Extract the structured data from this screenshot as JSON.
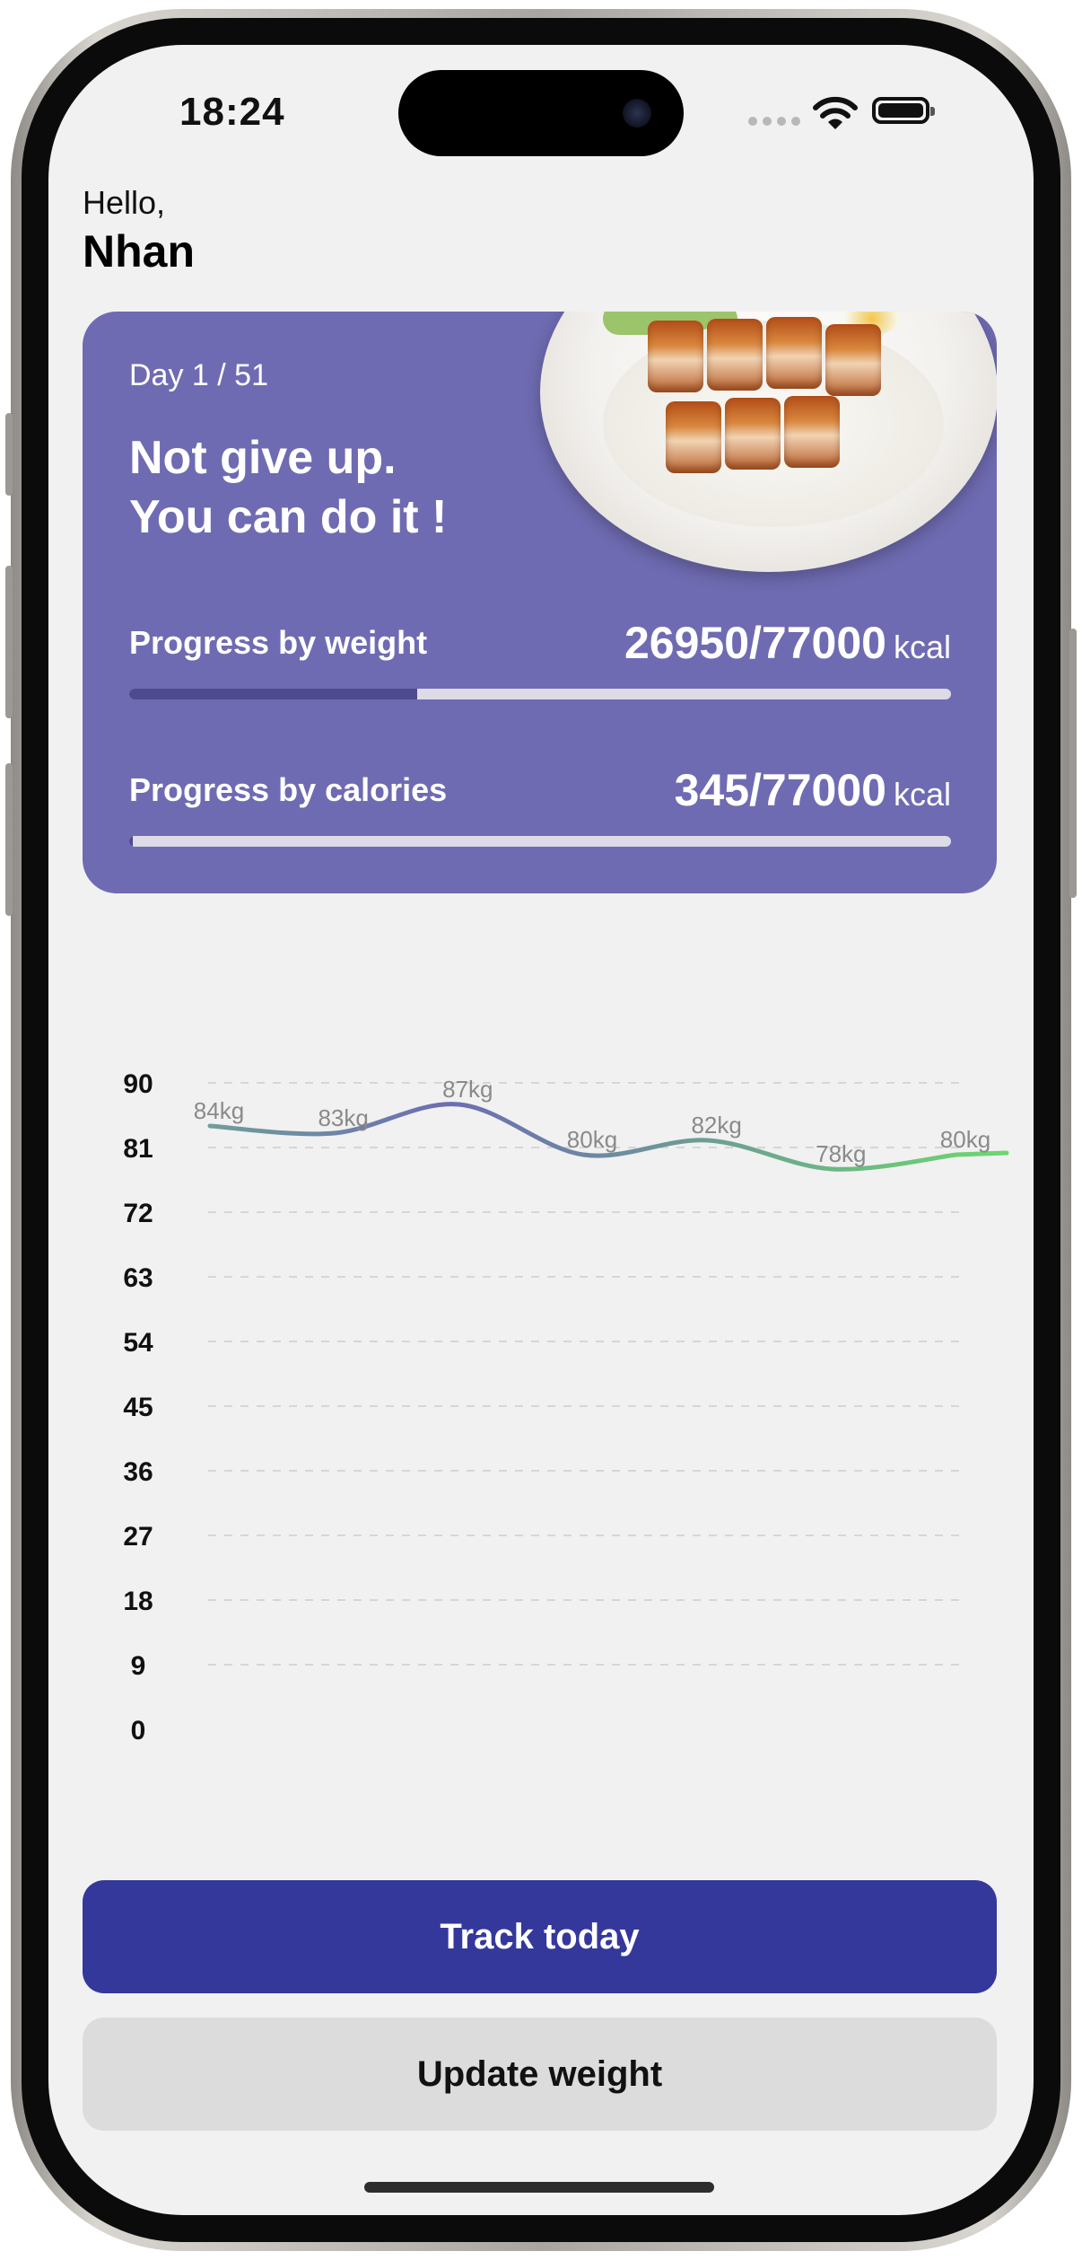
{
  "status_bar": {
    "time": "18:24",
    "icons": [
      "cellular-dots-icon",
      "wifi-icon",
      "battery-icon"
    ]
  },
  "greeting": {
    "hello": "Hello,",
    "name": "Nhan"
  },
  "card": {
    "day": "Day 1 / 51",
    "motto_line1": "Not give up.",
    "motto_line2": "You can do it !",
    "image": "food-plate-image",
    "background_color": "#6f6bb2",
    "progress": [
      {
        "label": "Progress by weight",
        "value": "26950/77000",
        "unit": "kcal",
        "fraction": 0.35
      },
      {
        "label": "Progress by calories",
        "value": "345/77000",
        "unit": "kcal",
        "fraction": 0.0045
      }
    ]
  },
  "chart_data": {
    "type": "line",
    "y_ticks": [
      "90",
      "81",
      "72",
      "63",
      "54",
      "45",
      "36",
      "27",
      "18",
      "9",
      "0"
    ],
    "ylim": [
      0,
      90
    ],
    "x": [
      1,
      2,
      3,
      4,
      5,
      6,
      7
    ],
    "values": [
      84,
      83,
      87,
      80,
      82,
      78,
      80
    ],
    "point_labels": [
      "84kg",
      "83kg",
      "87kg",
      "80kg",
      "82kg",
      "78kg",
      "80kg"
    ],
    "line_gradient": [
      "#6f9e9a",
      "#6d6cb3",
      "#6cd86f"
    ],
    "grid": "dashed horizontal"
  },
  "actions": {
    "track_today": "Track today",
    "update_weight": "Update weight",
    "primary_color": "#34389b"
  }
}
